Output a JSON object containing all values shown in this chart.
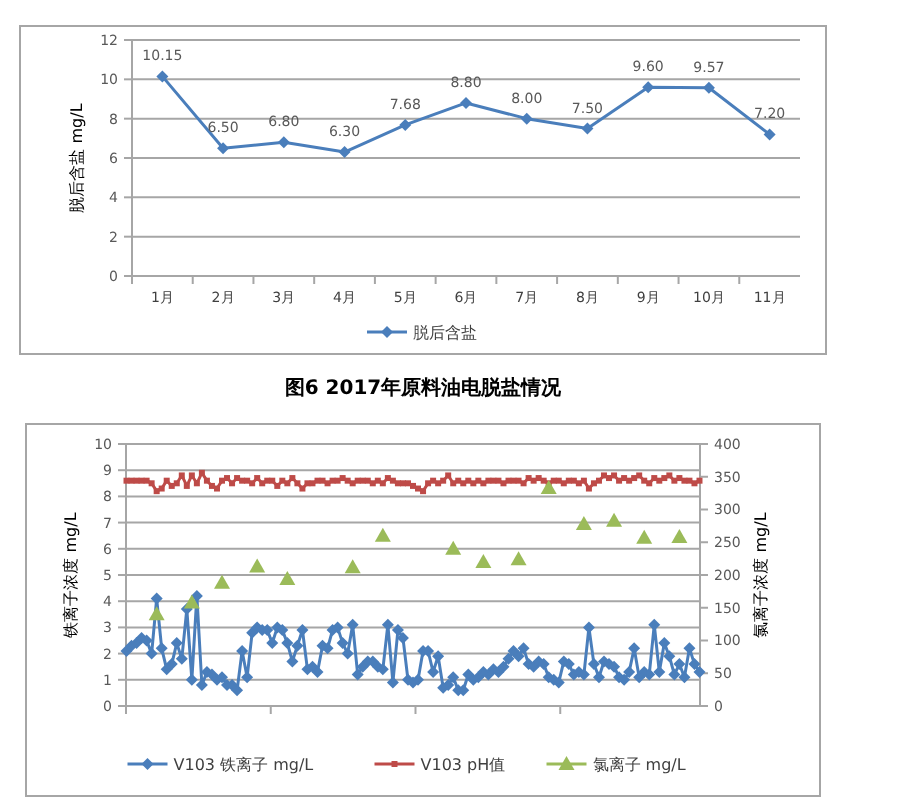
{
  "chart_data": [
    {
      "type": "line",
      "title": "图6   2017年原料油电脱盐情况",
      "ylabel": "脱后含盐 mg/L",
      "categories": [
        "1月",
        "2月",
        "3月",
        "4月",
        "5月",
        "6月",
        "7月",
        "8月",
        "9月",
        "10月",
        "11月"
      ],
      "series": [
        {
          "name": "脱后含盐",
          "color": "#4a7ebb",
          "marker": "diamond",
          "values": [
            10.15,
            6.5,
            6.8,
            6.3,
            7.68,
            8.8,
            8.0,
            7.5,
            9.6,
            9.57,
            7.2
          ],
          "value_labels": [
            "10.15",
            "6.50",
            "6.80",
            "6.30",
            "7.68",
            "8.80",
            "8.00",
            "7.50",
            "9.60",
            "9.57",
            "7.20"
          ]
        }
      ],
      "ylim": [
        0,
        12
      ],
      "yticks": [
        0,
        2,
        4,
        6,
        8,
        10,
        12
      ],
      "grid": "y",
      "legend": "bottom"
    },
    {
      "type": "line",
      "ylabel": "铁离子浓度 mg/L",
      "y2label": "氯离子浓度 mg/L",
      "categories": [
        null,
        null,
        null,
        null,
        null,
        null,
        null,
        null,
        null,
        null,
        null,
        null,
        null,
        null,
        null,
        null,
        null,
        null,
        null,
        null,
        null,
        null,
        null,
        null,
        null,
        null,
        null,
        null,
        null,
        null,
        null,
        null,
        null,
        null,
        null,
        null,
        null,
        null,
        null,
        null,
        null,
        null,
        null,
        null,
        null,
        null,
        null,
        null,
        null,
        null,
        null,
        null,
        null,
        null,
        null,
        null,
        null,
        null,
        null,
        null,
        null,
        null,
        null,
        null,
        null,
        null,
        null,
        null,
        null,
        null,
        null,
        null,
        null,
        null,
        null,
        null,
        null,
        null,
        null,
        null,
        null,
        null,
        null,
        null,
        null,
        null,
        null,
        null,
        null,
        null,
        null,
        null,
        null,
        null,
        null,
        null,
        null,
        null,
        null,
        null,
        null,
        null,
        null,
        null,
        null,
        null,
        null,
        null,
        null,
        null,
        null,
        null,
        null,
        null,
        null
      ],
      "series": [
        {
          "name": "V103 铁离子 mg/L",
          "color": "#4a7ebb",
          "marker": "diamond",
          "values": [
            2.1,
            2.3,
            2.4,
            2.6,
            2.5,
            2.0,
            4.1,
            2.2,
            1.4,
            1.6,
            2.4,
            1.8,
            3.7,
            1.0,
            4.2,
            0.8,
            1.3,
            1.2,
            1.0,
            1.1,
            0.8,
            0.8,
            0.6,
            2.1,
            1.1,
            2.8,
            3.0,
            2.9,
            2.9,
            2.4,
            3.0,
            2.9,
            2.4,
            1.7,
            2.3,
            2.9,
            1.4,
            1.5,
            1.3,
            2.3,
            2.2,
            2.9,
            3.0,
            2.4,
            2.0,
            3.1,
            1.2,
            1.5,
            1.7,
            1.7,
            1.5,
            1.4,
            3.1,
            0.9,
            2.9,
            2.6,
            1.0,
            0.9,
            1.0,
            2.1,
            2.1,
            1.3,
            1.9,
            0.7,
            0.8,
            1.1,
            0.6,
            0.6,
            1.2,
            1.0,
            1.1,
            1.3,
            1.2,
            1.4,
            1.3,
            1.5,
            1.8,
            2.1,
            1.9,
            2.2,
            1.6,
            1.5,
            1.7,
            1.6,
            1.1,
            1.0,
            0.9,
            1.7,
            1.6,
            1.2,
            1.3,
            1.2,
            3.0,
            1.6,
            1.1,
            1.7,
            1.6,
            1.5,
            1.1,
            1.0,
            1.3,
            2.2,
            1.1,
            1.3,
            1.2,
            3.1,
            1.3,
            2.4,
            1.9,
            1.2,
            1.6,
            1.1,
            2.2,
            1.6,
            1.3
          ]
        },
        {
          "name": "V103 pH值",
          "color": "#be4b48",
          "marker": "square",
          "values": [
            8.6,
            8.6,
            8.6,
            8.6,
            8.6,
            8.5,
            8.2,
            8.3,
            8.6,
            8.4,
            8.5,
            8.8,
            8.4,
            8.8,
            8.5,
            8.9,
            8.6,
            8.4,
            8.3,
            8.6,
            8.7,
            8.5,
            8.7,
            8.6,
            8.6,
            8.5,
            8.7,
            8.5,
            8.6,
            8.6,
            8.4,
            8.6,
            8.5,
            8.7,
            8.5,
            8.3,
            8.5,
            8.5,
            8.6,
            8.6,
            8.5,
            8.6,
            8.6,
            8.7,
            8.6,
            8.5,
            8.6,
            8.6,
            8.6,
            8.5,
            8.6,
            8.5,
            8.7,
            8.6,
            8.5,
            8.5,
            8.5,
            8.4,
            8.3,
            8.2,
            8.5,
            8.6,
            8.5,
            8.6,
            8.8,
            8.5,
            8.6,
            8.5,
            8.6,
            8.5,
            8.6,
            8.5,
            8.6,
            8.6,
            8.6,
            8.5,
            8.6,
            8.6,
            8.6,
            8.5,
            8.7,
            8.6,
            8.7,
            8.6,
            8.5,
            8.6,
            8.6,
            8.5,
            8.6,
            8.6,
            8.5,
            8.6,
            8.3,
            8.5,
            8.6,
            8.8,
            8.7,
            8.8,
            8.6,
            8.7,
            8.6,
            8.7,
            8.8,
            8.6,
            8.5,
            8.7,
            8.6,
            8.7,
            8.8,
            8.6,
            8.7,
            8.6,
            8.6,
            8.5,
            8.6
          ]
        },
        {
          "name": "氯离子 mg/L",
          "type": "scatter",
          "axis": "y2",
          "color": "#9bbb59",
          "marker": "triangle",
          "values": [
            null,
            null,
            null,
            null,
            null,
            null,
            140,
            null,
            null,
            null,
            null,
            null,
            null,
            158,
            null,
            null,
            null,
            null,
            null,
            188,
            null,
            null,
            null,
            null,
            null,
            null,
            213,
            null,
            null,
            null,
            null,
            null,
            194,
            null,
            null,
            null,
            null,
            null,
            null,
            null,
            null,
            null,
            null,
            null,
            null,
            212,
            null,
            null,
            null,
            null,
            null,
            260,
            null,
            null,
            null,
            null,
            null,
            null,
            null,
            null,
            null,
            null,
            null,
            null,
            null,
            240,
            null,
            null,
            null,
            null,
            null,
            220,
            null,
            null,
            null,
            null,
            null,
            null,
            224,
            null,
            null,
            null,
            null,
            null,
            333,
            null,
            null,
            null,
            null,
            null,
            null,
            278,
            null,
            null,
            null,
            null,
            null,
            283,
            null,
            null,
            null,
            null,
            null,
            257,
            null,
            null,
            null,
            null,
            null,
            null,
            258,
            null,
            null,
            null,
            null
          ]
        }
      ],
      "ylim": [
        0,
        10
      ],
      "yticks": [
        0,
        1,
        2,
        3,
        4,
        5,
        6,
        7,
        8,
        9,
        10
      ],
      "y2lim": [
        0,
        400
      ],
      "y2ticks": [
        0,
        50,
        100,
        150,
        200,
        250,
        300,
        350,
        400
      ],
      "grid": "y",
      "legend": "bottom"
    }
  ]
}
